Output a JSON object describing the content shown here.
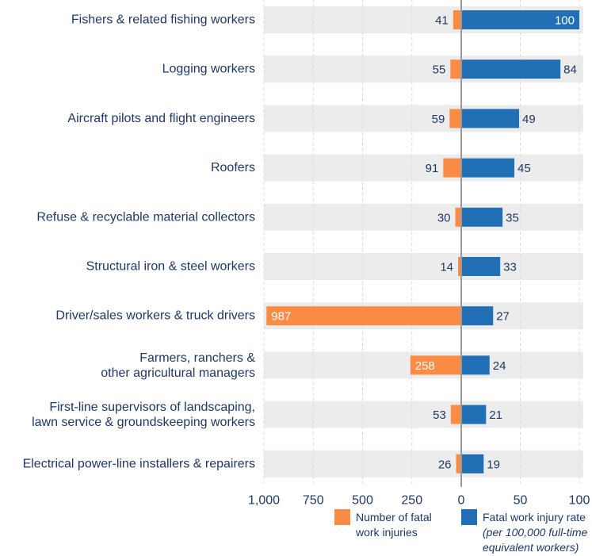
{
  "colors": {
    "left_series": "#fb8c46",
    "right_series": "#2170b5",
    "row_band": "#ececec",
    "grid": "#dcdcdc",
    "center_axis": "#9a9a9a",
    "text": "#1f3864"
  },
  "chart_data": {
    "type": "bar",
    "orientation": "horizontal-diverging",
    "categories": [
      [
        "Fishers & related fishing workers"
      ],
      [
        "Logging workers"
      ],
      [
        "Aircraft pilots and flight engineers"
      ],
      [
        "Roofers"
      ],
      [
        "Refuse & recyclable material collectors"
      ],
      [
        "Structural iron & steel workers"
      ],
      [
        "Driver/sales workers & truck drivers"
      ],
      [
        "Farmers, ranchers &",
        "other agricultural managers"
      ],
      [
        "First-line supervisors of landscaping,",
        "lawn service & groundskeeping workers"
      ],
      [
        "Electrical power-line installers & repairers"
      ]
    ],
    "series": [
      {
        "name": "Number of fatal work injuries",
        "legend_lines": [
          "Number of fatal",
          "work injuries"
        ],
        "values": [
          41,
          55,
          59,
          91,
          30,
          14,
          987,
          258,
          53,
          26
        ],
        "xlim": [
          0,
          1000
        ],
        "ticks": [
          "1,000",
          "750",
          "500",
          "250",
          "0"
        ],
        "tick_values": [
          1000,
          750,
          500,
          250,
          0
        ]
      },
      {
        "name": "Fatal work injury rate (per 100,000 full-time equivalent workers)",
        "legend_lines": [
          "Fatal work injury rate"
        ],
        "legend_lines_italic": [
          "(per 100,000 full-time",
          "equivalent workers)"
        ],
        "values": [
          100,
          84,
          49,
          45,
          35,
          33,
          27,
          24,
          21,
          19
        ],
        "xlim": [
          0,
          100
        ],
        "ticks": [
          "50",
          "100"
        ],
        "tick_values": [
          50,
          100
        ]
      }
    ],
    "grid": true,
    "legend_position": "bottom-right"
  }
}
